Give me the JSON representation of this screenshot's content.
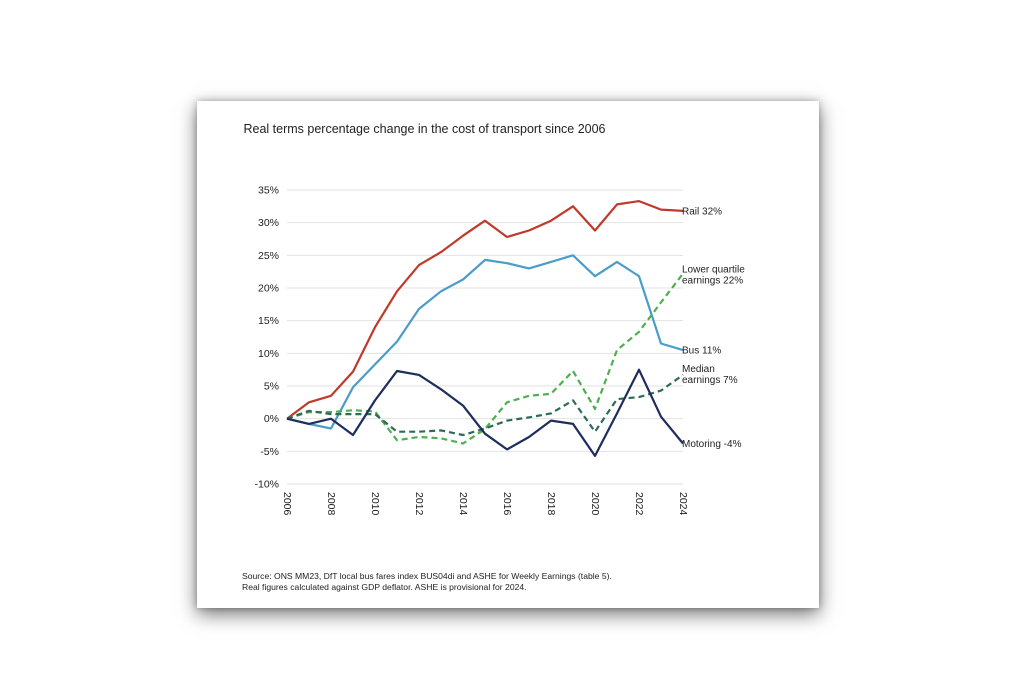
{
  "chart_data": {
    "type": "line",
    "title": "Real terms percentage change in the cost of transport since 2006",
    "xlabel": "",
    "ylabel": "",
    "ylim": [
      -10,
      35
    ],
    "yticks": [
      35,
      30,
      25,
      20,
      15,
      10,
      5,
      0,
      -5,
      -10
    ],
    "ytick_labels": [
      "35%",
      "30%",
      "25%",
      "20%",
      "15%",
      "10%",
      "5%",
      "0%",
      "-5%",
      "-10%"
    ],
    "xlim": [
      2006,
      2024
    ],
    "xticks": [
      2006,
      2008,
      2010,
      2012,
      2014,
      2016,
      2018,
      2020,
      2022,
      2024
    ],
    "grid": "horizontal",
    "x": [
      2006,
      2007,
      2008,
      2009,
      2010,
      2011,
      2012,
      2013,
      2014,
      2015,
      2016,
      2017,
      2018,
      2019,
      2020,
      2021,
      2022,
      2023,
      2024
    ],
    "series": [
      {
        "name": "Rail",
        "label": "Rail 32%",
        "color": "#c0392b",
        "dash": "solid",
        "values": [
          0,
          2.5,
          3.5,
          7.2,
          14,
          19.5,
          23.5,
          25.5,
          28,
          30.3,
          27.8,
          28.8,
          30.3,
          32.5,
          28.8,
          32.8,
          33.3,
          32,
          31.8
        ]
      },
      {
        "name": "Bus",
        "label": "Bus 11%",
        "color": "#4a9cc9",
        "dash": "solid",
        "values": [
          0,
          -0.8,
          -1.5,
          4.8,
          8.3,
          11.8,
          16.8,
          19.5,
          21.3,
          24.3,
          23.8,
          23,
          24,
          25,
          21.8,
          24,
          21.8,
          11.5,
          10.5
        ]
      },
      {
        "name": "Lower quartile earnings",
        "label_lines": [
          "Lower quartile",
          "earnings 22%"
        ],
        "color": "#4caf50",
        "dash": "dashed",
        "values": [
          0,
          1,
          1,
          1.3,
          1.1,
          -3.3,
          -2.8,
          -3,
          -3.8,
          -1.6,
          2.5,
          3.5,
          3.8,
          7.3,
          1.5,
          10.5,
          13.3,
          17.8,
          22.2
        ]
      },
      {
        "name": "Median earnings",
        "label_lines": [
          "Median",
          "earnings 7%"
        ],
        "color": "#2e6b57",
        "dash": "dashed",
        "values": [
          0,
          1.2,
          0.7,
          0.7,
          0.7,
          -2,
          -2,
          -1.8,
          -2.5,
          -1.5,
          -0.3,
          0.2,
          0.8,
          2.8,
          -2,
          3,
          3.3,
          4.3,
          6.7
        ]
      },
      {
        "name": "Motoring",
        "label": "Motoring -4%",
        "color": "#1f2d5c",
        "dash": "solid",
        "values": [
          0,
          -0.8,
          0,
          -2.5,
          2.8,
          7.3,
          6.7,
          4.5,
          2,
          -2.3,
          -4.7,
          -2.8,
          -0.3,
          -0.8,
          -5.7,
          0.8,
          7.5,
          0.3,
          -3.8
        ]
      }
    ]
  },
  "source": {
    "line1": "Source: ONS MM23, DfT local bus fares index BUS04di and ASHE for Weekly Earnings (table 5).",
    "line2": "Real figures calculated against GDP deflator. ASHE is provisional for 2024."
  }
}
